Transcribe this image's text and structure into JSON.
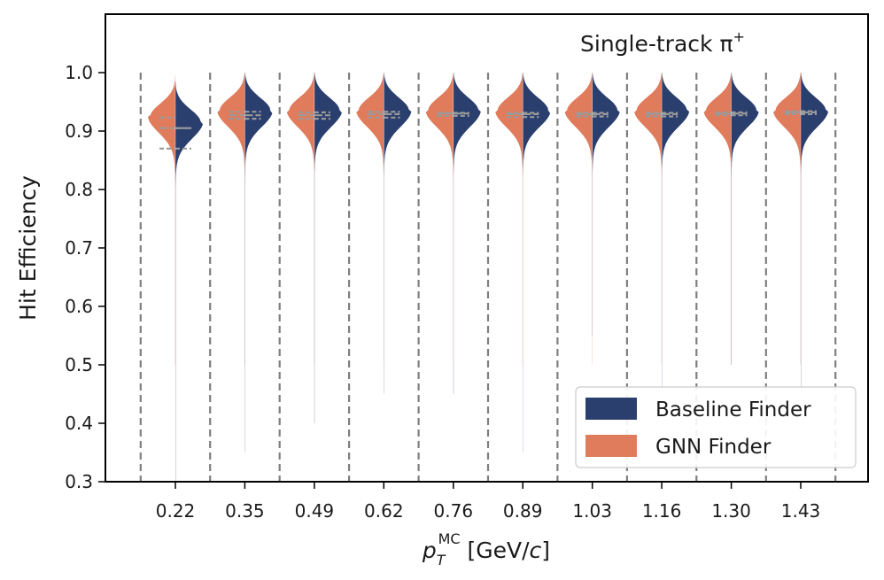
{
  "chart_data": {
    "type": "violin",
    "title": "",
    "annotation": "Single-track π",
    "annotation_superscript": "+",
    "xlabel": "p",
    "xlabel_sub": "T",
    "xlabel_sup": "MC",
    "xlabel_unit": " [GeV/",
    "xlabel_unit_italic": "c",
    "xlabel_close": "]",
    "ylabel": "Hit Efficiency",
    "ylim": [
      0.3,
      1.1
    ],
    "yticks": [
      "0.3",
      "0.4",
      "0.5",
      "0.6",
      "0.7",
      "0.8",
      "0.9",
      "1.0"
    ],
    "ytick_values": [
      0.3,
      0.4,
      0.5,
      0.6,
      0.7,
      0.8,
      0.9,
      1.0
    ],
    "categories": [
      "0.22",
      "0.35",
      "0.49",
      "0.62",
      "0.76",
      "0.89",
      "1.03",
      "1.16",
      "1.30",
      "1.43"
    ],
    "series": [
      {
        "name": "Baseline Finder",
        "color": "#2b3f6e",
        "side": "right",
        "mode": [
          0.915,
          0.935,
          0.935,
          0.935,
          0.935,
          0.935,
          0.935,
          0.935,
          0.935,
          0.935
        ],
        "min": [
          0.3,
          0.35,
          0.4,
          0.45,
          0.45,
          0.35,
          0.55,
          0.45,
          0.5,
          0.45
        ],
        "quartiles": [
          [
            0.87,
            0.905,
            0.905
          ],
          [
            0.921,
            0.927,
            0.933
          ],
          [
            0.921,
            0.927,
            0.932
          ],
          [
            0.923,
            0.929,
            0.933
          ],
          [
            0.926,
            0.93,
            0.931
          ],
          [
            0.924,
            0.929,
            0.931
          ],
          [
            0.925,
            0.929,
            0.931
          ],
          [
            0.925,
            0.929,
            0.931
          ],
          [
            0.927,
            0.93,
            0.932
          ],
          [
            0.929,
            0.932,
            0.934
          ]
        ]
      },
      {
        "name": "GNN Finder",
        "color": "#e07b5c",
        "side": "left",
        "mode": [
          0.925,
          0.935,
          0.935,
          0.935,
          0.935,
          0.935,
          0.935,
          0.935,
          0.935,
          0.935
        ],
        "min": [
          0.5,
          0.5,
          0.5,
          0.5,
          0.5,
          0.5,
          0.5,
          0.5,
          0.5,
          0.5
        ],
        "quartiles": [
          [
            0.87,
            0.905,
            0.923
          ],
          [
            0.921,
            0.927,
            0.933
          ],
          [
            0.921,
            0.927,
            0.932
          ],
          [
            0.923,
            0.929,
            0.933
          ],
          [
            0.926,
            0.93,
            0.931
          ],
          [
            0.924,
            0.929,
            0.931
          ],
          [
            0.925,
            0.929,
            0.931
          ],
          [
            0.925,
            0.929,
            0.931
          ],
          [
            0.927,
            0.93,
            0.932
          ],
          [
            0.929,
            0.932,
            0.934
          ]
        ]
      }
    ],
    "separators": "dashed vertical lines between categories",
    "legend_position": "lower-right",
    "grid": false
  }
}
